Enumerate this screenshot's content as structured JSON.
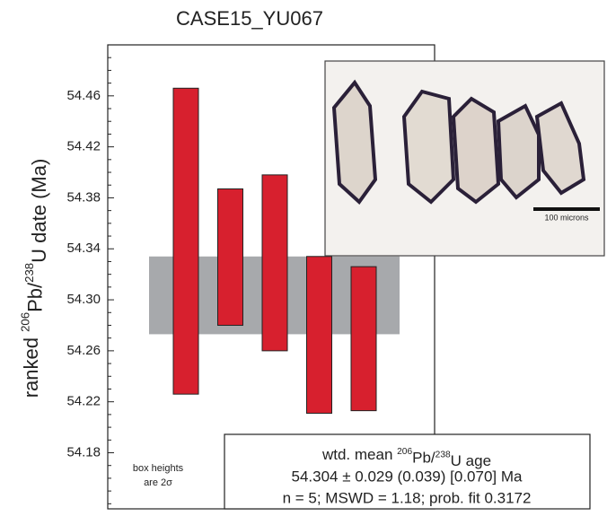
{
  "chart_data": {
    "type": "range-box",
    "title": "CASE15_YU067",
    "y_label": [
      "ranked ",
      "206",
      "Pb/",
      "238",
      "U date (Ma)"
    ],
    "ylim": [
      54.136,
      54.5
    ],
    "yticks": [
      54.46,
      54.42,
      54.38,
      54.34,
      {
        "value": 54.3,
        "label": "54.30"
      },
      54.26,
      54.22,
      54.18
    ],
    "minor_yticks": [
      54.14,
      54.15,
      54.16,
      54.17,
      54.19,
      54.2,
      54.21,
      54.23,
      54.24,
      54.25,
      54.27,
      54.28,
      54.29,
      54.31,
      54.32,
      54.33,
      54.35,
      54.36,
      54.37,
      54.39,
      54.4,
      54.41,
      54.43,
      54.44,
      54.45,
      54.47,
      54.48,
      54.49
    ],
    "series": [
      {
        "color": "#d7202e",
        "low": [
          54.226,
          54.28,
          54.26,
          54.211,
          54.213
        ],
        "high": [
          54.466,
          54.387,
          54.398,
          54.334,
          54.326
        ]
      }
    ],
    "mean_band": {
      "color": "#a7a9ac",
      "low": 54.273,
      "high": 54.334
    },
    "box_note": [
      "box heights",
      "are 2σ"
    ],
    "inset_label": "100 microns",
    "annotation": {
      "line1": [
        "wtd. mean ",
        "206",
        "Pb/",
        "238",
        "U age"
      ],
      "line2": "54.304 ± 0.029 (0.039) [0.070] Ma",
      "line3": "n = 5; MSWD = 1.18; prob. fit 0.3172"
    }
  }
}
